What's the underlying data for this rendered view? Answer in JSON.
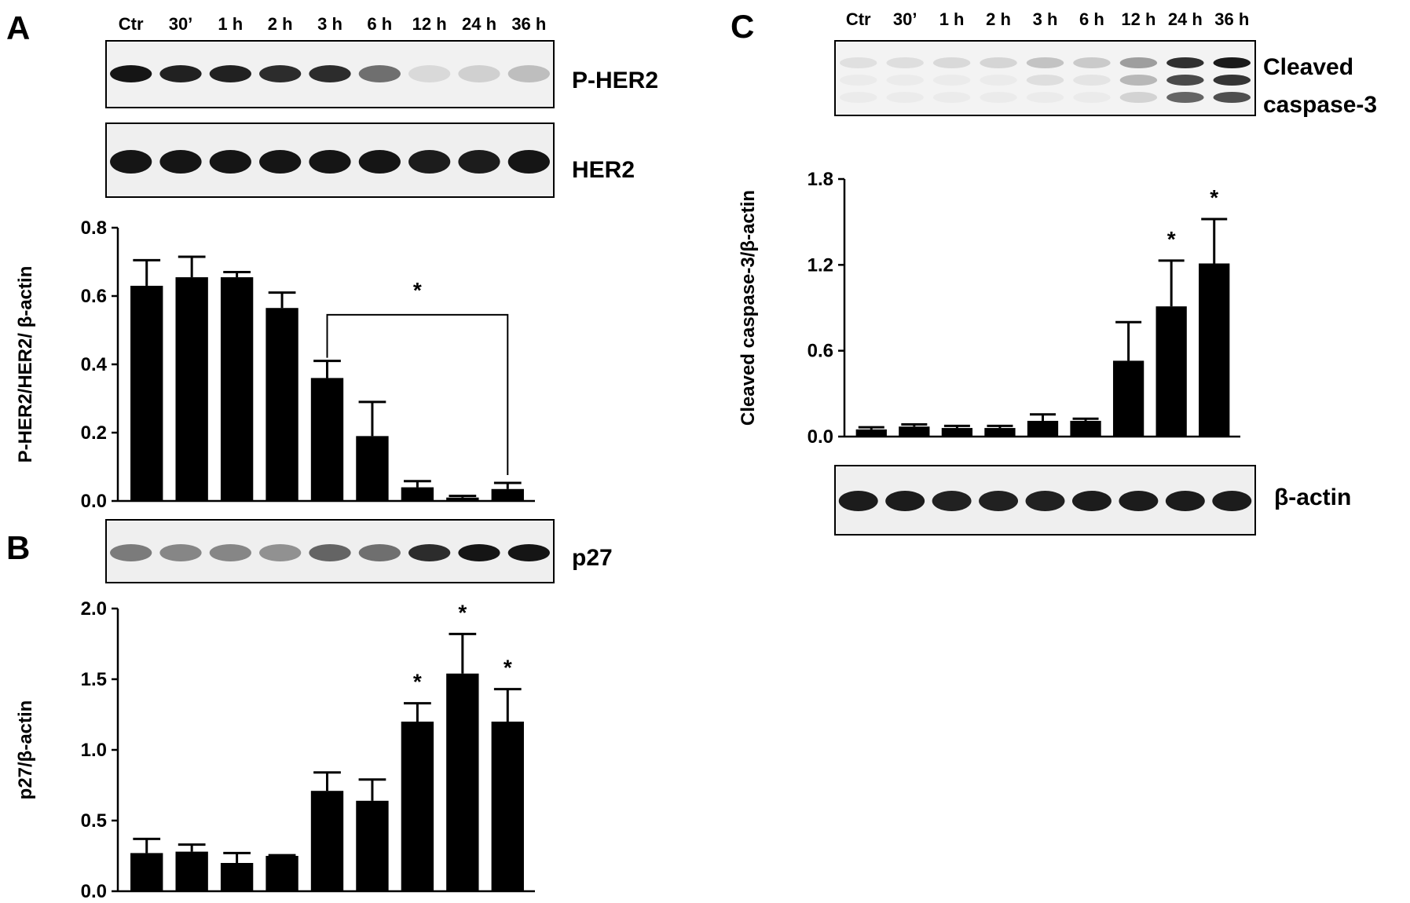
{
  "panels": [
    {
      "letter": "A"
    },
    {
      "letter": "B"
    },
    {
      "letter": "C"
    }
  ],
  "lanes": [
    "Ctr",
    "30’",
    "1 h",
    "2 h",
    "3 h",
    "6 h",
    "12 h",
    "24 h",
    "36 h"
  ],
  "blots": {
    "p_her2": {
      "label": "P-HER2",
      "intensity": [
        0.95,
        0.9,
        0.9,
        0.85,
        0.85,
        0.55,
        0.08,
        0.12,
        0.2
      ]
    },
    "her2": {
      "label": "HER2",
      "intensity": [
        0.95,
        0.95,
        0.95,
        0.95,
        0.95,
        0.95,
        0.92,
        0.92,
        0.95
      ]
    },
    "p27": {
      "label": "p27",
      "intensity": [
        0.5,
        0.45,
        0.45,
        0.4,
        0.6,
        0.55,
        0.85,
        0.95,
        0.95
      ]
    },
    "cleaved_caspase3": {
      "label_line1": "Cleaved",
      "label_line2": "caspase-3",
      "intensity": [
        0.05,
        0.06,
        0.08,
        0.1,
        0.18,
        0.15,
        0.35,
        0.85,
        0.95
      ]
    },
    "beta_actin": {
      "label": "β-actin",
      "intensity": [
        0.92,
        0.92,
        0.9,
        0.9,
        0.9,
        0.92,
        0.92,
        0.92,
        0.92
      ]
    }
  },
  "chart_data": [
    {
      "id": "A",
      "type": "bar",
      "categories": [
        "Ctr",
        "30’",
        "1 h",
        "2 h",
        "3 h",
        "6 h",
        "12 h",
        "24 h",
        "36 h"
      ],
      "values": [
        0.63,
        0.655,
        0.655,
        0.565,
        0.36,
        0.19,
        0.04,
        0.01,
        0.035
      ],
      "errors": [
        0.075,
        0.06,
        0.015,
        0.045,
        0.05,
        0.1,
        0.018,
        0.005,
        0.018
      ],
      "ylabel": "P-HER2/HER2/ β-actin",
      "ylim": [
        0,
        0.8
      ],
      "yticks": [
        "0.0",
        "0.2",
        "0.4",
        "0.6",
        "0.8"
      ],
      "significance": {
        "bracket_from": 4,
        "bracket_to": 8,
        "text": "*"
      }
    },
    {
      "id": "B",
      "type": "bar",
      "categories": [
        "Ctr",
        "30’",
        "1 h",
        "2 h",
        "3 h",
        "6 h",
        "12 h",
        "24 h",
        "36 h"
      ],
      "values": [
        0.27,
        0.28,
        0.2,
        0.25,
        0.71,
        0.64,
        1.2,
        1.54,
        1.2
      ],
      "errors": [
        0.1,
        0.05,
        0.07,
        0.005,
        0.13,
        0.15,
        0.13,
        0.28,
        0.23
      ],
      "ylabel": "p27/β-actin",
      "ylim": [
        0,
        2.0
      ],
      "yticks": [
        "0.0",
        "0.5",
        "1.0",
        "1.5",
        "2.0"
      ],
      "stars": [
        {
          "index": 6,
          "text": "*"
        },
        {
          "index": 7,
          "text": "*"
        },
        {
          "index": 8,
          "text": "*"
        }
      ]
    },
    {
      "id": "C",
      "type": "bar",
      "categories": [
        "Ctr",
        "30’",
        "1 h",
        "2 h",
        "3 h",
        "6 h",
        "12 h",
        "24 h",
        "36 h"
      ],
      "values": [
        0.05,
        0.07,
        0.06,
        0.06,
        0.11,
        0.11,
        0.53,
        0.91,
        1.21
      ],
      "errors": [
        0.015,
        0.015,
        0.015,
        0.015,
        0.045,
        0.015,
        0.27,
        0.32,
        0.31
      ],
      "ylabel": "Cleaved caspase-3/β-actin",
      "ylim": [
        0,
        1.8
      ],
      "yticks": [
        "0.0",
        "0.6",
        "1.2",
        "1.8"
      ],
      "stars": [
        {
          "index": 7,
          "text": "*"
        },
        {
          "index": 8,
          "text": "*"
        }
      ]
    }
  ]
}
